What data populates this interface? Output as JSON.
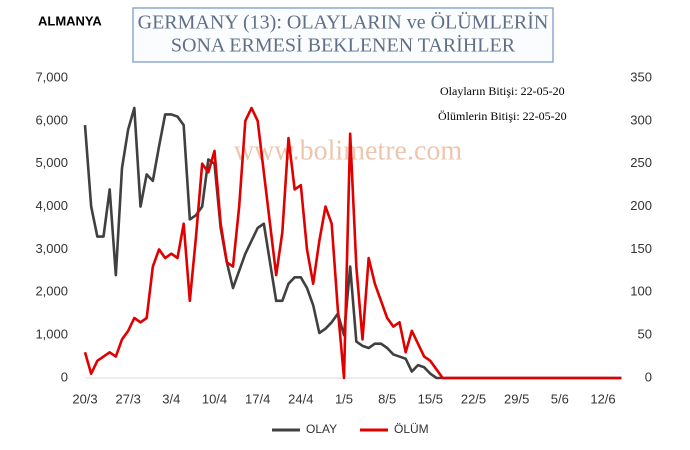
{
  "chart_data": {
    "type": "line",
    "country": "ALMANYA",
    "title": [
      "GERMANY (13): OLAYLARIN  ve ÖLÜMLERİN",
      "SONA ERMESİ BEKLENEN TARİHLER"
    ],
    "annotations": [
      "Olayların Bitişi: 22-05-20",
      "Ölümlerin Bitişi: 22-05-20"
    ],
    "watermark": "www.bolimetre.com",
    "categories": [
      "20/3",
      null,
      null,
      null,
      null,
      null,
      null,
      "27/3",
      null,
      null,
      null,
      null,
      null,
      null,
      "3/4",
      null,
      null,
      null,
      null,
      null,
      null,
      "10/4",
      null,
      null,
      null,
      null,
      null,
      null,
      "17/4",
      null,
      null,
      null,
      null,
      null,
      null,
      "24/4",
      null,
      null,
      null,
      null,
      null,
      null,
      "1/5",
      null,
      null,
      null,
      null,
      null,
      null,
      "8/5",
      null,
      null,
      null,
      null,
      null,
      null,
      "15/5",
      null,
      null,
      null,
      null,
      null,
      null,
      "22/5",
      null,
      null,
      null,
      null,
      null,
      null,
      "29/5",
      null,
      null,
      null,
      null,
      null,
      null,
      "5/6",
      null,
      null,
      null,
      null,
      null,
      null,
      "12/6",
      null,
      null,
      null
    ],
    "series": [
      {
        "name": "OLAY",
        "color": "#404040",
        "axis": "y",
        "values": [
          5900,
          4000,
          3300,
          3300,
          4400,
          2400,
          4900,
          5800,
          6300,
          4000,
          4750,
          4600,
          5400,
          6150,
          6150,
          6100,
          5900,
          3700,
          3800,
          4000,
          5100,
          5000,
          3500,
          2700,
          2100,
          2500,
          2900,
          3200,
          3500,
          3600,
          2700,
          1800,
          1800,
          2200,
          2350,
          2350,
          2100,
          1700,
          1050,
          1150,
          1300,
          1500,
          1000,
          2600,
          850,
          750,
          700,
          800,
          800,
          700,
          550,
          500,
          450,
          150,
          300,
          250,
          100,
          0,
          0,
          0,
          0,
          0,
          0,
          0,
          0,
          0,
          0,
          0,
          0,
          0,
          0,
          0,
          0,
          0,
          0,
          0,
          0,
          0,
          0,
          0,
          0,
          0,
          0,
          0,
          0,
          0,
          0,
          0
        ]
      },
      {
        "name": "ÖLÜM",
        "color": "#e00000",
        "axis": "y2",
        "values": [
          30,
          5,
          20,
          25,
          30,
          25,
          45,
          55,
          70,
          65,
          70,
          130,
          150,
          140,
          145,
          140,
          180,
          90,
          165,
          250,
          240,
          265,
          180,
          135,
          130,
          200,
          300,
          315,
          300,
          240,
          180,
          120,
          170,
          280,
          220,
          225,
          150,
          110,
          160,
          200,
          180,
          80,
          0,
          285,
          130,
          45,
          140,
          110,
          90,
          70,
          60,
          65,
          30,
          55,
          40,
          25,
          20,
          10,
          0,
          0,
          0,
          0,
          0,
          0,
          0,
          0,
          0,
          0,
          0,
          0,
          0,
          0,
          0,
          0,
          0,
          0,
          0,
          0,
          0,
          0,
          0,
          0,
          0,
          0,
          0,
          0,
          0,
          0
        ]
      }
    ],
    "ylim": [
      0,
      7000
    ],
    "yticks": [
      0,
      {
        "value": 1000,
        "label": "1,000"
      },
      {
        "value": 2000,
        "label": "2,000"
      },
      {
        "value": 3000,
        "label": "3,000"
      },
      {
        "value": 4000,
        "label": "4,000"
      },
      {
        "value": 5000,
        "label": "5,000"
      },
      {
        "value": 6000,
        "label": "6,000"
      },
      {
        "value": 7000,
        "label": "7,000"
      }
    ],
    "y2lim": [
      0,
      350
    ],
    "y2ticks": [
      0,
      50,
      100,
      150,
      200,
      250,
      300,
      350
    ],
    "grid": false,
    "legend": "bottom"
  }
}
